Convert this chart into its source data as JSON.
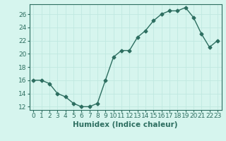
{
  "x": [
    0,
    1,
    2,
    3,
    4,
    5,
    6,
    7,
    8,
    9,
    10,
    11,
    12,
    13,
    14,
    15,
    16,
    17,
    18,
    19,
    20,
    21,
    22,
    23
  ],
  "y": [
    16,
    16,
    15.5,
    14,
    13.5,
    12.5,
    12,
    12,
    12.5,
    16,
    19.5,
    20.5,
    20.5,
    22.5,
    23.5,
    25,
    26,
    26.5,
    26.5,
    27,
    25.5,
    23,
    21,
    22
  ],
  "line_color": "#2d6e60",
  "marker": "D",
  "markersize": 2.5,
  "linewidth": 1.0,
  "bg_color": "#d6f5ee",
  "grid_color": "#c0e8e0",
  "xlabel": "Humidex (Indice chaleur)",
  "xlim": [
    -0.5,
    23.5
  ],
  "ylim": [
    11.5,
    27.5
  ],
  "yticks": [
    12,
    14,
    16,
    18,
    20,
    22,
    24,
    26
  ],
  "xticks": [
    0,
    1,
    2,
    3,
    4,
    5,
    6,
    7,
    8,
    9,
    10,
    11,
    12,
    13,
    14,
    15,
    16,
    17,
    18,
    19,
    20,
    21,
    22,
    23
  ],
  "xlabel_fontsize": 7.5,
  "tick_fontsize": 6.5,
  "axis_color": "#2d6e60",
  "spine_color": "#2d6e60"
}
